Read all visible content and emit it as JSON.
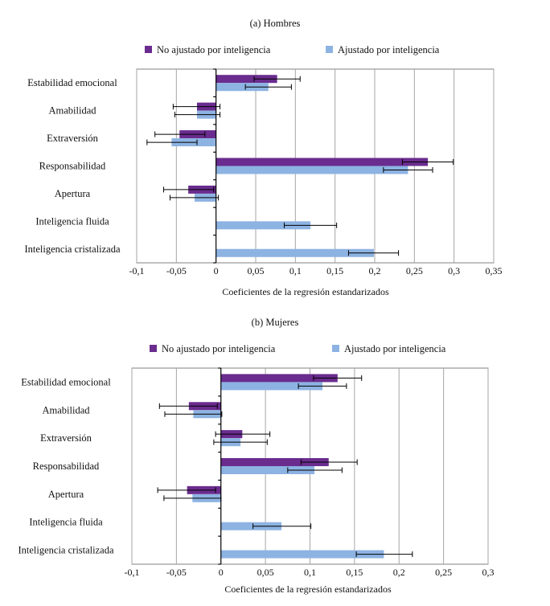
{
  "legend": {
    "unadjusted": "No ajustado por inteligencia",
    "adjusted": "Ajustado por inteligencia"
  },
  "colors": {
    "unadjusted": "#6a2c8e",
    "adjusted": "#8db3e2",
    "grid": "#a6a6a6",
    "axis": "#000000",
    "error_bar": "#000000"
  },
  "chart_data": [
    {
      "type": "bar",
      "orientation": "horizontal",
      "title": "(a) Hombres",
      "xlabel": "Coeficientes de la regresión estandarizados",
      "ylabel": "",
      "xlim": [
        -0.1,
        0.35
      ],
      "xticks": [
        -0.1,
        -0.05,
        0,
        0.05,
        0.1,
        0.15,
        0.2,
        0.25,
        0.3,
        0.35
      ],
      "xtick_labels": [
        "-0,1",
        "-0,05",
        "0",
        "0,05",
        "0,1",
        "0,15",
        "0,2",
        "0,25",
        "0,3",
        "0,35"
      ],
      "grid": true,
      "legend_position": "top",
      "categories": [
        "Estabilidad emocional",
        "Amabilidad",
        "Extraversión",
        "Responsabilidad",
        "Apertura",
        "Inteligencia fluida",
        "Inteligencia cristalizada"
      ],
      "series": [
        {
          "name": "No ajustado por inteligencia",
          "values": [
            0.077,
            -0.024,
            -0.046,
            0.267,
            -0.035,
            null,
            null
          ],
          "ci_low": [
            0.048,
            -0.054,
            -0.077,
            0.235,
            -0.066,
            null,
            null
          ],
          "ci_high": [
            0.106,
            0.005,
            -0.014,
            0.299,
            -0.003,
            null,
            null
          ]
        },
        {
          "name": "Ajustado por inteligencia",
          "values": [
            0.066,
            -0.024,
            -0.056,
            0.242,
            -0.027,
            0.119,
            0.199
          ],
          "ci_low": [
            0.037,
            -0.052,
            -0.087,
            0.211,
            -0.058,
            0.086,
            0.167
          ],
          "ci_high": [
            0.095,
            0.005,
            -0.024,
            0.273,
            0.003,
            0.152,
            0.23
          ]
        }
      ]
    },
    {
      "type": "bar",
      "orientation": "horizontal",
      "title": "(b) Mujeres",
      "xlabel": "Coeficientes de la regresión estandarizados",
      "ylabel": "",
      "xlim": [
        -0.1,
        0.3
      ],
      "xticks": [
        -0.1,
        -0.05,
        0,
        0.05,
        0.1,
        0.15,
        0.2,
        0.25,
        0.3
      ],
      "xtick_labels": [
        "-0,1",
        "-0,05",
        "0",
        "0,05",
        "0,1",
        "0,15",
        "0,2",
        "0,25",
        "0,3"
      ],
      "grid": true,
      "legend_position": "top",
      "categories": [
        "Estabilidad emocional",
        "Amabilidad",
        "Extraversión",
        "Responsabilidad",
        "Apertura",
        "Inteligencia fluida",
        "Inteligencia cristalizada"
      ],
      "series": [
        {
          "name": "No ajustado por inteligencia",
          "values": [
            0.131,
            -0.036,
            0.024,
            0.121,
            -0.038,
            null,
            null
          ],
          "ci_low": [
            0.104,
            -0.069,
            -0.006,
            0.09,
            -0.071,
            null,
            null
          ],
          "ci_high": [
            0.158,
            -0.004,
            0.055,
            0.153,
            -0.006,
            null,
            null
          ]
        },
        {
          "name": "Ajustado por inteligencia",
          "values": [
            0.114,
            -0.031,
            0.022,
            0.105,
            -0.032,
            0.068,
            0.183
          ],
          "ci_low": [
            0.087,
            -0.063,
            -0.008,
            0.075,
            -0.064,
            0.036,
            0.152
          ],
          "ci_high": [
            0.141,
            0.001,
            0.052,
            0.136,
            0.0,
            0.101,
            0.215
          ]
        }
      ]
    }
  ]
}
